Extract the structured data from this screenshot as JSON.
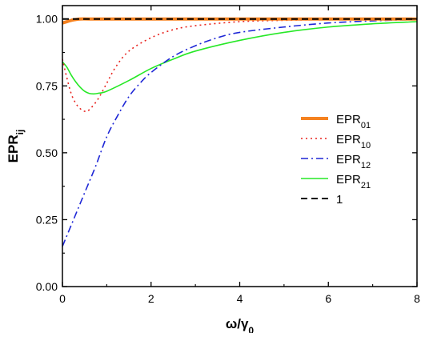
{
  "chart_data": {
    "type": "line",
    "title": "",
    "xlabel": "ω/γ",
    "xlabel_sub": "0",
    "ylabel": "EPR",
    "ylabel_sub": "ij",
    "xlim": [
      0,
      8
    ],
    "ylim": [
      0,
      1.05
    ],
    "x_ticks": [
      0,
      2,
      4,
      6,
      8
    ],
    "y_ticks": [
      0.0,
      0.25,
      0.5,
      0.75,
      1.0
    ],
    "x_tick_labels": [
      "0",
      "2",
      "4",
      "6",
      "8"
    ],
    "y_tick_labels": [
      "0.00",
      "0.25",
      "0.50",
      "0.75",
      "1.00"
    ],
    "grid": false,
    "legend_position": "center-right",
    "series": [
      {
        "name": "EPR",
        "name_sub": "01",
        "color": "#f58220",
        "style": "solid-thick",
        "x": [
          0,
          0.1,
          0.2,
          0.3,
          0.4,
          0.6,
          1,
          2,
          4,
          6,
          8
        ],
        "y": [
          0.985,
          0.99,
          0.995,
          0.998,
          1.0,
          1.0,
          1.0,
          1.0,
          1.0,
          1.0,
          1.0
        ]
      },
      {
        "name": "EPR",
        "name_sub": "10",
        "color": "#e8231e",
        "style": "dotted",
        "x": [
          0,
          0.1,
          0.2,
          0.3,
          0.4,
          0.5,
          0.6,
          0.8,
          1.0,
          1.2,
          1.5,
          2.0,
          2.5,
          3.0,
          4.0,
          5.0,
          6.0,
          7.0,
          8.0
        ],
        "y": [
          0.85,
          0.78,
          0.72,
          0.685,
          0.665,
          0.655,
          0.66,
          0.7,
          0.76,
          0.82,
          0.88,
          0.93,
          0.96,
          0.975,
          0.99,
          0.995,
          0.998,
          0.999,
          1.0
        ]
      },
      {
        "name": "EPR",
        "name_sub": "12",
        "color": "#1e27d6",
        "style": "dash-dot",
        "x": [
          0,
          0.25,
          0.5,
          0.75,
          1.0,
          1.25,
          1.5,
          1.75,
          2.0,
          2.5,
          3.0,
          3.5,
          4.0,
          5.0,
          6.0,
          7.0,
          8.0
        ],
        "y": [
          0.15,
          0.25,
          0.35,
          0.45,
          0.56,
          0.64,
          0.71,
          0.76,
          0.8,
          0.86,
          0.9,
          0.93,
          0.95,
          0.97,
          0.985,
          0.993,
          0.998
        ]
      },
      {
        "name": "EPR",
        "name_sub": "21",
        "color": "#27e827",
        "style": "solid",
        "x": [
          0,
          0.1,
          0.2,
          0.3,
          0.4,
          0.5,
          0.6,
          0.7,
          0.8,
          1.0,
          1.5,
          2.0,
          2.5,
          3.0,
          4.0,
          5.0,
          6.0,
          7.0,
          8.0
        ],
        "y": [
          0.84,
          0.82,
          0.79,
          0.765,
          0.745,
          0.73,
          0.722,
          0.72,
          0.722,
          0.73,
          0.77,
          0.815,
          0.85,
          0.88,
          0.92,
          0.95,
          0.97,
          0.982,
          0.99
        ]
      },
      {
        "name": "1",
        "name_sub": "",
        "color": "#000000",
        "style": "dashed",
        "x": [
          0,
          8
        ],
        "y": [
          1.0,
          1.0
        ]
      }
    ]
  }
}
